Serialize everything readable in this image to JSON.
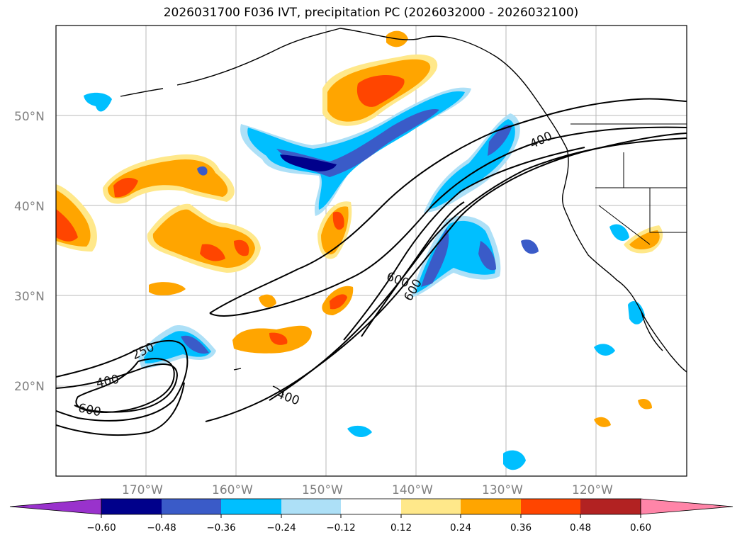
{
  "title": "2026031700 F036 IVT, precipitation PC (2026032000 - 2026032100)",
  "colors": {
    "neg_060": "#9932CC",
    "neg_048": "#00008B",
    "neg_036": "#3A5BC8",
    "neg_024": "#00BFFF",
    "neg_012": "#ADE0F7",
    "zero": "#FFFFFF",
    "pos_012": "#FFE88A",
    "pos_024": "#FFA500",
    "pos_036": "#FF4500",
    "pos_048": "#B22222",
    "pos_060": "#FF85A8"
  },
  "map": {
    "lat_labels": [
      "50°N",
      "40°N",
      "30°N",
      "20°N"
    ],
    "lon_labels": [
      "170°W",
      "160°W",
      "150°W",
      "140°W",
      "130°W",
      "120°W"
    ],
    "contour_labels": [
      "400",
      "600",
      "250",
      "400",
      "600",
      "400",
      "600"
    ]
  },
  "colorbar": {
    "tick_labels": [
      "−0.60",
      "−0.48",
      "−0.36",
      "−0.24",
      "−0.12",
      "0.12",
      "0.24",
      "0.36",
      "0.48",
      "0.60"
    ]
  }
}
